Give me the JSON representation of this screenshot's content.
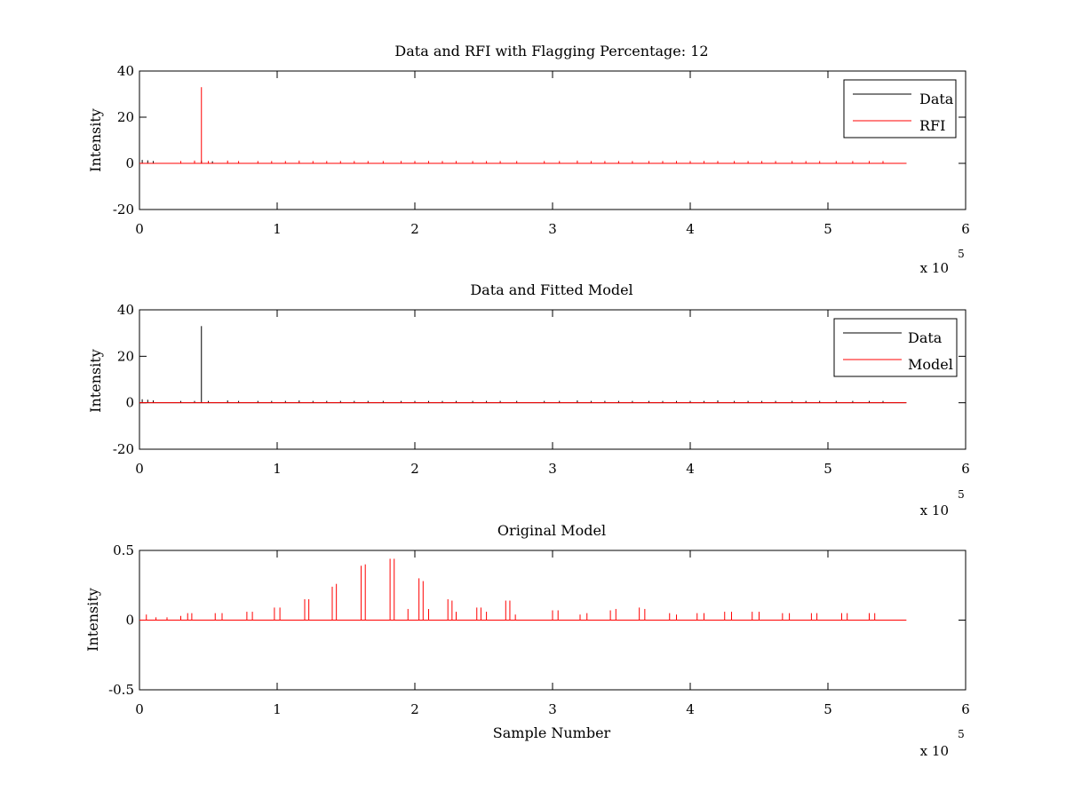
{
  "colors": {
    "data": "#000000",
    "red": "#ff0000",
    "axes": "#000000",
    "background": "#ffffff"
  },
  "chart_data": [
    {
      "type": "line",
      "title": "Data and RFI with Flagging Percentage: 12",
      "xlabel": "",
      "ylabel": "Intensity",
      "xlim": [
        0,
        6
      ],
      "ylim": [
        -20,
        40
      ],
      "x_exponent": "5",
      "x_multiplier_label": "x 10",
      "xticks": [
        "0",
        "1",
        "2",
        "3",
        "4",
        "5",
        "6"
      ],
      "yticks": [
        "-20",
        "0",
        "20",
        "40"
      ],
      "legend": {
        "position": "top-right",
        "entries": [
          "Data",
          "RFI"
        ]
      },
      "x_range_data": [
        0,
        5.57
      ],
      "series": [
        {
          "name": "Data",
          "color": "#000000",
          "baseline": 0,
          "spikes": [
            [
              0.02,
              1.5
            ],
            [
              0.06,
              1.3
            ],
            [
              0.1,
              1.0
            ],
            [
              0.45,
              1.2
            ],
            [
              0.53,
              0.9
            ]
          ]
        },
        {
          "name": "RFI",
          "color": "#ff0000",
          "baseline": 0,
          "spikes": [
            [
              0.3,
              1.0
            ],
            [
              0.4,
              1.2
            ],
            [
              0.45,
              33
            ],
            [
              0.5,
              1.0
            ],
            [
              0.64,
              1.2
            ],
            [
              0.72,
              1.0
            ],
            [
              0.86,
              1.0
            ],
            [
              0.96,
              1.0
            ],
            [
              1.06,
              1.0
            ],
            [
              1.16,
              1.2
            ],
            [
              1.26,
              1.0
            ],
            [
              1.36,
              1.0
            ],
            [
              1.46,
              1.0
            ],
            [
              1.56,
              1.0
            ],
            [
              1.66,
              1.0
            ],
            [
              1.77,
              1.0
            ],
            [
              1.9,
              1.0
            ],
            [
              2.0,
              1.0
            ],
            [
              2.1,
              1.0
            ],
            [
              2.2,
              1.0
            ],
            [
              2.3,
              1.0
            ],
            [
              2.42,
              1.0
            ],
            [
              2.52,
              1.0
            ],
            [
              2.62,
              1.0
            ],
            [
              2.74,
              1.0
            ],
            [
              2.94,
              1.0
            ],
            [
              3.05,
              1.0
            ],
            [
              3.18,
              1.2
            ],
            [
              3.28,
              1.0
            ],
            [
              3.38,
              1.0
            ],
            [
              3.48,
              1.0
            ],
            [
              3.58,
              1.0
            ],
            [
              3.7,
              1.0
            ],
            [
              3.8,
              1.0
            ],
            [
              3.9,
              1.0
            ],
            [
              4.0,
              1.0
            ],
            [
              4.1,
              1.0
            ],
            [
              4.2,
              1.0
            ],
            [
              4.32,
              1.0
            ],
            [
              4.42,
              1.0
            ],
            [
              4.52,
              1.0
            ],
            [
              4.62,
              1.0
            ],
            [
              4.74,
              1.0
            ],
            [
              4.84,
              1.0
            ],
            [
              4.94,
              1.0
            ],
            [
              5.06,
              1.0
            ],
            [
              5.18,
              1.0
            ],
            [
              5.3,
              1.0
            ],
            [
              5.4,
              1.0
            ]
          ]
        }
      ]
    },
    {
      "type": "line",
      "title": "Data and Fitted Model",
      "xlabel": "",
      "ylabel": "Intensity",
      "xlim": [
        0,
        6
      ],
      "ylim": [
        -20,
        40
      ],
      "x_exponent": "5",
      "x_multiplier_label": "x 10",
      "xticks": [
        "0",
        "1",
        "2",
        "3",
        "4",
        "5",
        "6"
      ],
      "yticks": [
        "-20",
        "0",
        "20",
        "40"
      ],
      "legend": {
        "position": "top-right",
        "entries": [
          "Data",
          "Model"
        ]
      },
      "x_range_data": [
        0,
        5.57
      ],
      "series": [
        {
          "name": "Data",
          "color": "#000000",
          "baseline": 0,
          "spikes": [
            [
              0.02,
              1.5
            ],
            [
              0.06,
              1.3
            ],
            [
              0.1,
              1.0
            ],
            [
              0.3,
              0.8
            ],
            [
              0.4,
              0.8
            ],
            [
              0.45,
              33
            ],
            [
              0.5,
              0.8
            ],
            [
              0.64,
              1.0
            ],
            [
              0.72,
              0.8
            ],
            [
              0.86,
              0.8
            ],
            [
              0.96,
              0.8
            ],
            [
              1.06,
              0.8
            ],
            [
              1.16,
              1.0
            ],
            [
              1.26,
              0.8
            ],
            [
              1.36,
              0.8
            ],
            [
              1.46,
              0.8
            ],
            [
              1.56,
              0.8
            ],
            [
              1.66,
              0.8
            ],
            [
              1.77,
              0.8
            ],
            [
              1.9,
              0.8
            ],
            [
              2.0,
              0.8
            ],
            [
              2.1,
              0.8
            ],
            [
              2.2,
              0.8
            ],
            [
              2.3,
              0.8
            ],
            [
              2.42,
              0.8
            ],
            [
              2.52,
              0.8
            ],
            [
              2.62,
              0.8
            ],
            [
              2.74,
              0.8
            ],
            [
              2.94,
              0.8
            ],
            [
              3.05,
              0.8
            ],
            [
              3.18,
              1.0
            ],
            [
              3.28,
              0.8
            ],
            [
              3.38,
              0.8
            ],
            [
              3.48,
              0.8
            ],
            [
              3.58,
              0.8
            ],
            [
              3.7,
              0.8
            ],
            [
              3.8,
              0.8
            ],
            [
              3.9,
              0.8
            ],
            [
              4.0,
              0.8
            ],
            [
              4.1,
              0.8
            ],
            [
              4.2,
              1.0
            ],
            [
              4.32,
              0.8
            ],
            [
              4.42,
              0.8
            ],
            [
              4.52,
              0.8
            ],
            [
              4.62,
              0.8
            ],
            [
              4.74,
              0.8
            ],
            [
              4.84,
              0.8
            ],
            [
              4.94,
              0.8
            ],
            [
              5.06,
              0.8
            ],
            [
              5.18,
              0.8
            ],
            [
              5.3,
              0.8
            ],
            [
              5.4,
              0.8
            ]
          ]
        },
        {
          "name": "Model",
          "color": "#ff0000",
          "baseline": 0,
          "spikes": []
        }
      ]
    },
    {
      "type": "line",
      "title": "Original Model",
      "xlabel": "Sample Number",
      "ylabel": "Intensity",
      "xlim": [
        0,
        6
      ],
      "ylim": [
        -0.5,
        0.5
      ],
      "x_exponent": "5",
      "x_multiplier_label": "x 10",
      "xticks": [
        "0",
        "1",
        "2",
        "3",
        "4",
        "5",
        "6"
      ],
      "yticks": [
        "-0.5",
        "0",
        "0.5"
      ],
      "legend": null,
      "x_range_data": [
        0,
        5.57
      ],
      "series": [
        {
          "name": "",
          "color": "#ff0000",
          "baseline": 0,
          "spikes": [
            [
              0.05,
              0.04
            ],
            [
              0.12,
              0.02
            ],
            [
              0.2,
              0.02
            ],
            [
              0.3,
              0.03
            ],
            [
              0.35,
              0.05
            ],
            [
              0.38,
              0.05
            ],
            [
              0.55,
              0.05
            ],
            [
              0.6,
              0.05
            ],
            [
              0.78,
              0.06
            ],
            [
              0.82,
              0.06
            ],
            [
              0.98,
              0.09
            ],
            [
              1.02,
              0.09
            ],
            [
              1.2,
              0.15
            ],
            [
              1.23,
              0.15
            ],
            [
              1.4,
              0.24
            ],
            [
              1.43,
              0.26
            ],
            [
              1.61,
              0.39
            ],
            [
              1.64,
              0.4
            ],
            [
              1.82,
              0.44
            ],
            [
              1.85,
              0.44
            ],
            [
              1.95,
              0.08
            ],
            [
              2.03,
              0.3
            ],
            [
              2.06,
              0.28
            ],
            [
              2.1,
              0.08
            ],
            [
              2.24,
              0.15
            ],
            [
              2.27,
              0.14
            ],
            [
              2.3,
              0.06
            ],
            [
              2.45,
              0.09
            ],
            [
              2.48,
              0.09
            ],
            [
              2.52,
              0.06
            ],
            [
              2.66,
              0.14
            ],
            [
              2.69,
              0.14
            ],
            [
              2.73,
              0.04
            ],
            [
              3.0,
              0.07
            ],
            [
              3.04,
              0.07
            ],
            [
              3.2,
              0.04
            ],
            [
              3.25,
              0.05
            ],
            [
              3.42,
              0.07
            ],
            [
              3.46,
              0.08
            ],
            [
              3.63,
              0.09
            ],
            [
              3.67,
              0.08
            ],
            [
              3.85,
              0.05
            ],
            [
              3.9,
              0.04
            ],
            [
              4.05,
              0.05
            ],
            [
              4.1,
              0.05
            ],
            [
              4.25,
              0.06
            ],
            [
              4.3,
              0.06
            ],
            [
              4.45,
              0.06
            ],
            [
              4.5,
              0.06
            ],
            [
              4.67,
              0.05
            ],
            [
              4.72,
              0.05
            ],
            [
              4.88,
              0.05
            ],
            [
              4.92,
              0.05
            ],
            [
              5.1,
              0.05
            ],
            [
              5.14,
              0.05
            ],
            [
              5.3,
              0.05
            ],
            [
              5.34,
              0.05
            ]
          ]
        }
      ]
    }
  ]
}
